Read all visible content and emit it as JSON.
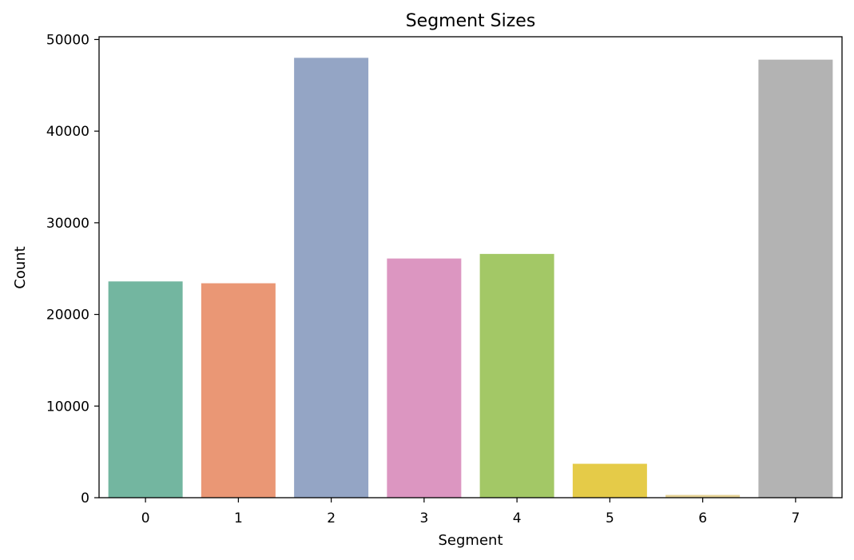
{
  "chart_data": {
    "type": "bar",
    "title": "Segment Sizes",
    "xlabel": "Segment",
    "ylabel": "Count",
    "categories": [
      "0",
      "1",
      "2",
      "3",
      "4",
      "5",
      "6",
      "7"
    ],
    "values": [
      23600,
      23400,
      48000,
      26100,
      26600,
      3700,
      300,
      47800
    ],
    "colors": [
      "#73b6a0",
      "#ea9775",
      "#94a5c5",
      "#dc96c1",
      "#a3c866",
      "#e5cb48",
      "#e5d295",
      "#b3b3b3"
    ],
    "ylim": [
      0,
      50300
    ],
    "yticks": [
      0,
      10000,
      20000,
      30000,
      40000,
      50000
    ],
    "grid": false,
    "legend": false
  }
}
